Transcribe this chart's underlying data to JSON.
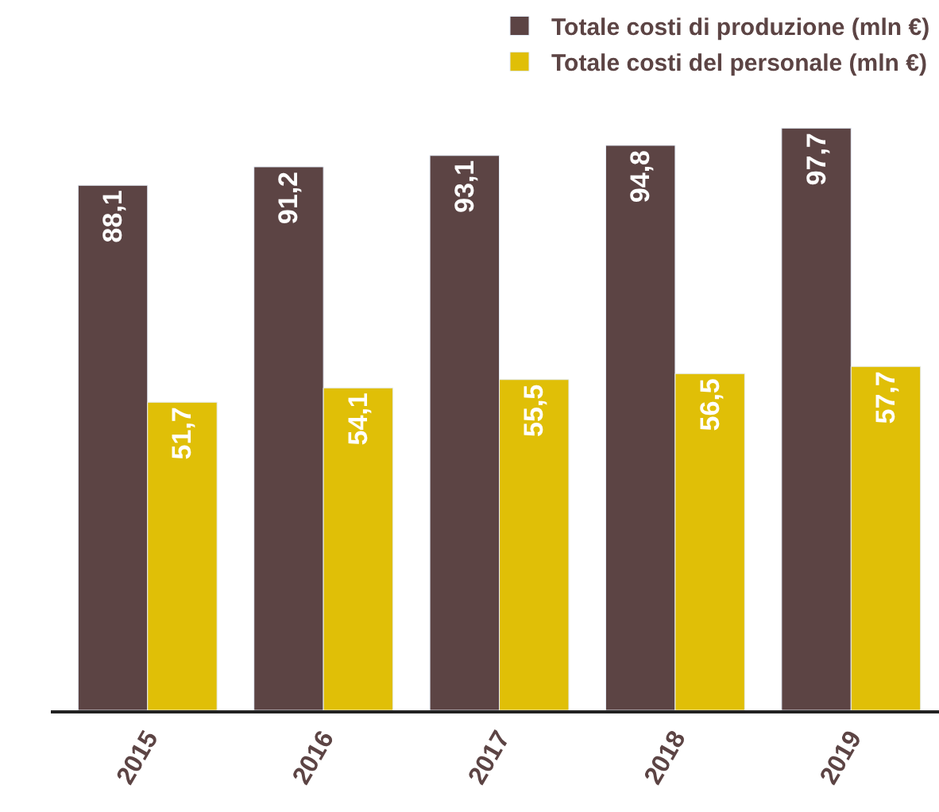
{
  "chart_data": {
    "type": "bar",
    "categories": [
      "2015",
      "2016",
      "2017",
      "2018",
      "2019"
    ],
    "series": [
      {
        "name": "Totale costi di produzione (mln €)",
        "color": "#5c4444",
        "values": [
          88.1,
          91.2,
          93.1,
          94.8,
          97.7
        ],
        "value_labels": [
          "88,1",
          "91,2",
          "93,1",
          "94,8",
          "97,7"
        ]
      },
      {
        "name": "Totale costi del personale (mln €)",
        "color": "#e0bf07",
        "values": [
          51.7,
          54.1,
          55.5,
          56.5,
          57.7
        ],
        "value_labels": [
          "51,7",
          "54,1",
          "55,5",
          "56,5",
          "57,7"
        ]
      }
    ],
    "legend": "top right"
  }
}
